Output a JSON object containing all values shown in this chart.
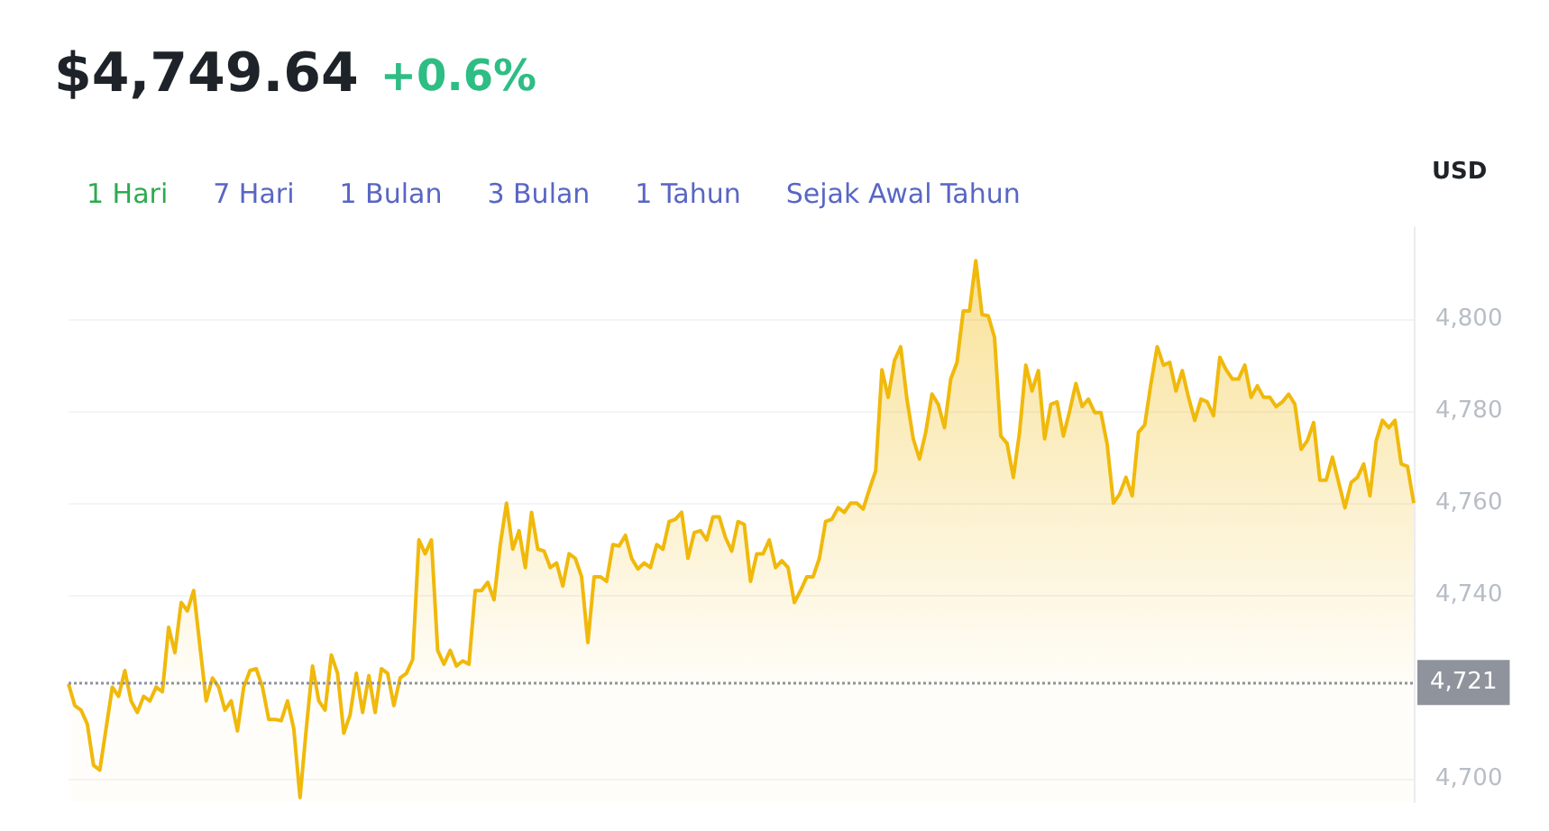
{
  "chart_data": {
    "type": "area",
    "title": "$4,749.64",
    "subtitle": "+0.6%",
    "ylabel": "USD",
    "annotations": [
      "1 Hari",
      "7 Hari",
      "1 Bulan",
      "3 Bulan",
      "1 Tahun",
      "Sejak Awal Tahun"
    ],
    "categories": [
      null,
      null,
      null,
      null,
      null,
      null,
      null,
      null,
      null,
      null,
      null,
      null,
      null,
      null,
      null,
      null,
      null,
      null,
      null,
      null,
      null,
      null,
      null,
      null,
      null,
      null,
      null,
      null,
      null,
      null,
      null,
      null,
      null,
      null,
      null,
      null,
      null,
      null,
      null,
      null,
      null,
      null,
      null,
      null,
      null,
      null,
      null,
      null,
      null,
      null,
      null,
      null,
      null,
      null,
      null,
      null,
      null,
      null,
      null,
      null,
      null,
      null,
      null,
      null,
      null,
      null,
      null,
      null,
      null,
      null,
      null,
      null,
      null,
      null,
      null,
      null,
      null,
      null,
      null,
      null,
      null,
      null,
      null,
      null,
      null,
      null,
      null,
      null,
      null,
      null,
      null,
      null,
      null,
      null,
      null,
      null,
      null,
      null,
      null,
      null,
      null,
      null,
      null,
      null,
      null,
      null,
      null,
      null,
      null,
      null,
      null,
      null,
      null,
      null,
      null,
      null,
      null,
      null,
      null,
      null,
      null,
      null,
      null,
      null,
      null,
      null,
      null,
      null,
      null,
      null,
      null,
      null,
      null,
      null,
      null,
      null,
      null,
      null,
      null,
      null,
      null,
      null,
      null,
      null,
      null,
      null,
      null,
      null,
      null,
      null,
      null,
      null,
      null,
      null,
      null,
      null,
      null,
      null,
      null,
      null,
      null,
      null,
      null,
      null,
      null,
      null,
      null,
      null,
      null,
      null,
      null,
      null,
      null,
      null,
      null,
      null,
      null,
      null,
      null,
      null,
      null,
      null,
      null,
      null,
      null,
      null,
      null,
      null,
      null,
      null,
      null,
      null,
      null,
      null,
      null,
      null,
      null,
      null,
      null,
      null,
      null,
      null,
      null,
      null,
      null,
      null,
      null,
      null,
      null,
      null,
      null,
      null,
      null,
      null,
      null,
      null
    ],
    "series": [
      {
        "color": "#f0b90b",
        "values": [
          4720.7,
          4716,
          4715,
          4712,
          4703,
          4702,
          4711,
          4720,
          4718,
          4723.6,
          4717,
          4714.5,
          4718,
          4717,
          4720,
          4719,
          4733,
          4727.5,
          4738.4,
          4736.6,
          4741,
          4729,
          4717,
          4722,
          4720,
          4715,
          4717,
          4710.5,
          4720,
          4723.6,
          4724,
          4720,
          4713,
          4713,
          4712.7,
          4717,
          4711,
          4696,
          4711,
          4724.6,
          4717,
          4715,
          4727,
          4723,
          4710,
          4714,
          4723,
          4714.5,
          4722.5,
          4714.5,
          4724,
          4723,
          4716,
          4722,
          4723,
          4726,
          4752,
          4749,
          4752,
          4728,
          4725,
          4728,
          4724.6,
          4725.7,
          4725,
          4741,
          4741,
          4742.8,
          4739,
          4751,
          4760,
          4750,
          4754,
          4746,
          4758,
          4750,
          4749.6,
          4746,
          4747,
          4742,
          4749,
          4748,
          4744,
          4729.7,
          4744,
          4744,
          4743,
          4751,
          4750.7,
          4753,
          4748,
          4745.7,
          4747,
          4746,
          4751,
          4750,
          4756,
          4756.5,
          4758,
          4748,
          4753.6,
          4754,
          4752,
          4757,
          4757,
          4752.5,
          4749.6,
          4756,
          4755.4,
          4743,
          4749,
          4749,
          4752,
          4746,
          4747.5,
          4746,
          4738.4,
          4741,
          4744,
          4744,
          4748,
          4756,
          4756.5,
          4759,
          4758,
          4760,
          4760,
          4758.7,
          4763,
          4767,
          4789,
          4783,
          4791,
          4794,
          4782.6,
          4774,
          4769.6,
          4775.4,
          4783.7,
          4781.5,
          4776.4,
          4787,
          4790.6,
          4801.8,
          4801.8,
          4812.7,
          4801,
          4800.7,
          4796,
          4774.6,
          4773,
          4765.6,
          4775.4,
          4790,
          4784.4,
          4788.8,
          4774,
          4781.5,
          4782,
          4774.6,
          4780,
          4786,
          4781,
          4782.6,
          4779.7,
          4779.7,
          4772.8,
          4760,
          4762,
          4765.6,
          4761.6,
          4775.4,
          4777,
          4786,
          4794,
          4790,
          4790.6,
          4784.4,
          4788.8,
          4783,
          4778,
          4782.6,
          4782,
          4779,
          4791.7,
          4789,
          4787,
          4787,
          4790,
          4783,
          4785.5,
          4783,
          4783,
          4781,
          4782,
          4783.7,
          4781.5,
          4771.7,
          4773.6,
          4777.5,
          4765,
          4765,
          4770,
          4764.5,
          4759,
          4764.5,
          4765.6,
          4768.5,
          4761.6,
          4773.6,
          4778,
          4776.4,
          4778,
          4768.5,
          4768,
          4760
        ]
      }
    ],
    "ylim": [
      4695,
      4820
    ],
    "yticks": [
      {
        "value": 4700,
        "label": "4,700"
      },
      {
        "value": 4740,
        "label": "4,740"
      },
      {
        "value": 4760,
        "label": "4,760"
      },
      {
        "value": 4780,
        "label": "4,780"
      },
      {
        "value": 4800,
        "label": "4,800"
      }
    ],
    "ref_lines": [
      {
        "axis": "y",
        "value": 4721,
        "label": "4,721",
        "color": "#8f939c",
        "line_style": "dotted"
      }
    ],
    "grid": "y",
    "marker": "none",
    "line_style": "solid"
  }
}
